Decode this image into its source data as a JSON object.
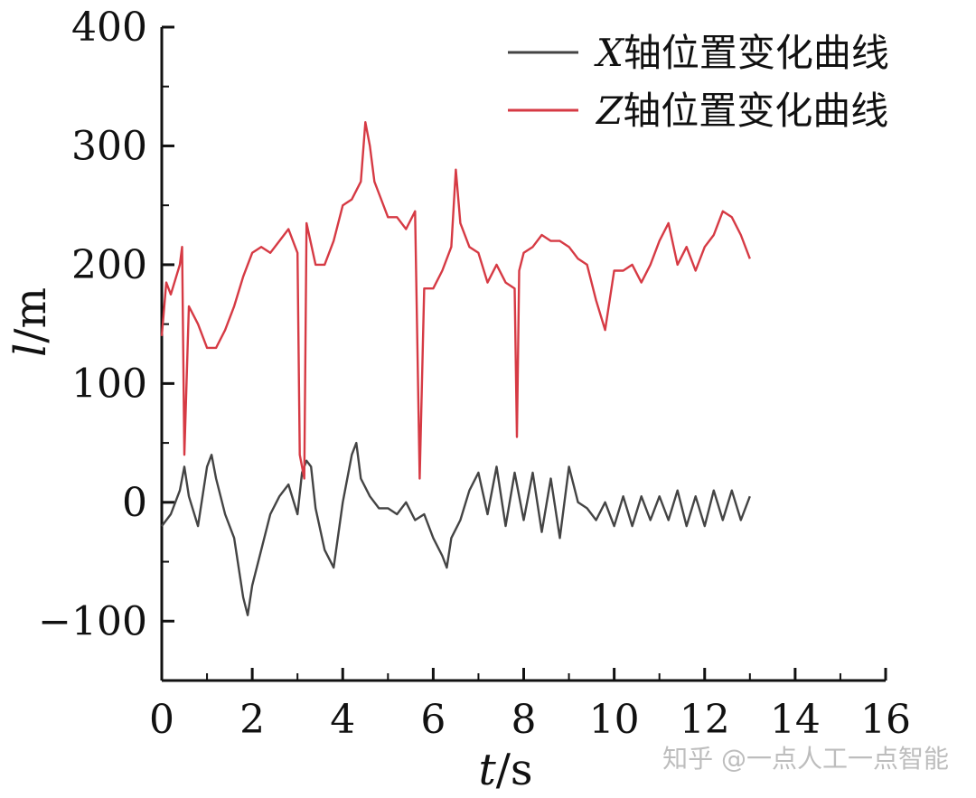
{
  "chart_data": {
    "type": "line",
    "xlabel": "t/s",
    "ylabel": "l/m",
    "xlim": [
      0,
      16
    ],
    "ylim": [
      -150,
      400
    ],
    "x_ticks": [
      0,
      2,
      4,
      6,
      8,
      10,
      12,
      14,
      16
    ],
    "y_ticks": [
      -100,
      0,
      100,
      200,
      300,
      400
    ],
    "legend_position": "top-right",
    "series": [
      {
        "name": "X轴位置变化曲线",
        "color": "#444444",
        "x": [
          0.0,
          0.2,
          0.4,
          0.5,
          0.6,
          0.8,
          1.0,
          1.1,
          1.2,
          1.4,
          1.6,
          1.8,
          1.9,
          2.0,
          2.2,
          2.4,
          2.6,
          2.8,
          3.0,
          3.1,
          3.2,
          3.3,
          3.4,
          3.6,
          3.8,
          4.0,
          4.2,
          4.3,
          4.4,
          4.6,
          4.8,
          5.0,
          5.2,
          5.4,
          5.6,
          5.8,
          6.0,
          6.2,
          6.3,
          6.4,
          6.6,
          6.8,
          7.0,
          7.2,
          7.4,
          7.6,
          7.8,
          8.0,
          8.2,
          8.4,
          8.6,
          8.8,
          9.0,
          9.2,
          9.4,
          9.6,
          9.8,
          10.0,
          10.2,
          10.4,
          10.6,
          10.8,
          11.0,
          11.2,
          11.4,
          11.6,
          11.8,
          12.0,
          12.2,
          12.4,
          12.6,
          12.8,
          13.0
        ],
        "y": [
          -20,
          -10,
          10,
          30,
          5,
          -20,
          30,
          40,
          20,
          -10,
          -30,
          -80,
          -95,
          -70,
          -40,
          -10,
          5,
          15,
          -10,
          25,
          35,
          30,
          -5,
          -40,
          -55,
          0,
          40,
          50,
          20,
          5,
          -5,
          -5,
          -10,
          0,
          -15,
          -10,
          -30,
          -45,
          -55,
          -30,
          -15,
          10,
          25,
          -10,
          30,
          -20,
          25,
          -15,
          25,
          -25,
          20,
          -30,
          30,
          0,
          -5,
          -15,
          0,
          -20,
          5,
          -20,
          5,
          -15,
          5,
          -15,
          10,
          -20,
          5,
          -20,
          10,
          -15,
          10,
          -15,
          5
        ],
        "values_note": ""
      },
      {
        "name": "Z轴位置变化曲线",
        "color": "#d63a44",
        "x": [
          0.0,
          0.1,
          0.2,
          0.4,
          0.45,
          0.5,
          0.6,
          0.8,
          1.0,
          1.2,
          1.4,
          1.6,
          1.8,
          2.0,
          2.2,
          2.4,
          2.6,
          2.8,
          3.0,
          3.05,
          3.15,
          3.2,
          3.4,
          3.6,
          3.8,
          4.0,
          4.2,
          4.4,
          4.5,
          4.6,
          4.7,
          4.8,
          5.0,
          5.2,
          5.4,
          5.6,
          5.7,
          5.8,
          6.0,
          6.2,
          6.4,
          6.5,
          6.6,
          6.8,
          7.0,
          7.2,
          7.4,
          7.6,
          7.8,
          7.85,
          7.9,
          8.0,
          8.2,
          8.4,
          8.6,
          8.8,
          9.0,
          9.2,
          9.4,
          9.6,
          9.8,
          10.0,
          10.2,
          10.4,
          10.6,
          10.8,
          11.0,
          11.2,
          11.4,
          11.6,
          11.8,
          12.0,
          12.2,
          12.4,
          12.6,
          12.8,
          13.0
        ],
        "y": [
          140,
          185,
          175,
          200,
          215,
          40,
          165,
          150,
          130,
          130,
          145,
          165,
          190,
          210,
          215,
          210,
          220,
          230,
          210,
          40,
          20,
          235,
          200,
          200,
          220,
          250,
          255,
          270,
          320,
          300,
          270,
          260,
          240,
          240,
          230,
          245,
          20,
          180,
          180,
          195,
          215,
          280,
          235,
          215,
          210,
          185,
          200,
          185,
          180,
          55,
          195,
          210,
          215,
          225,
          220,
          220,
          215,
          205,
          200,
          170,
          145,
          195,
          195,
          200,
          185,
          200,
          220,
          235,
          200,
          215,
          195,
          215,
          225,
          245,
          240,
          225,
          205
        ]
      }
    ]
  },
  "watermark": "知乎 @一点人工一点智能"
}
